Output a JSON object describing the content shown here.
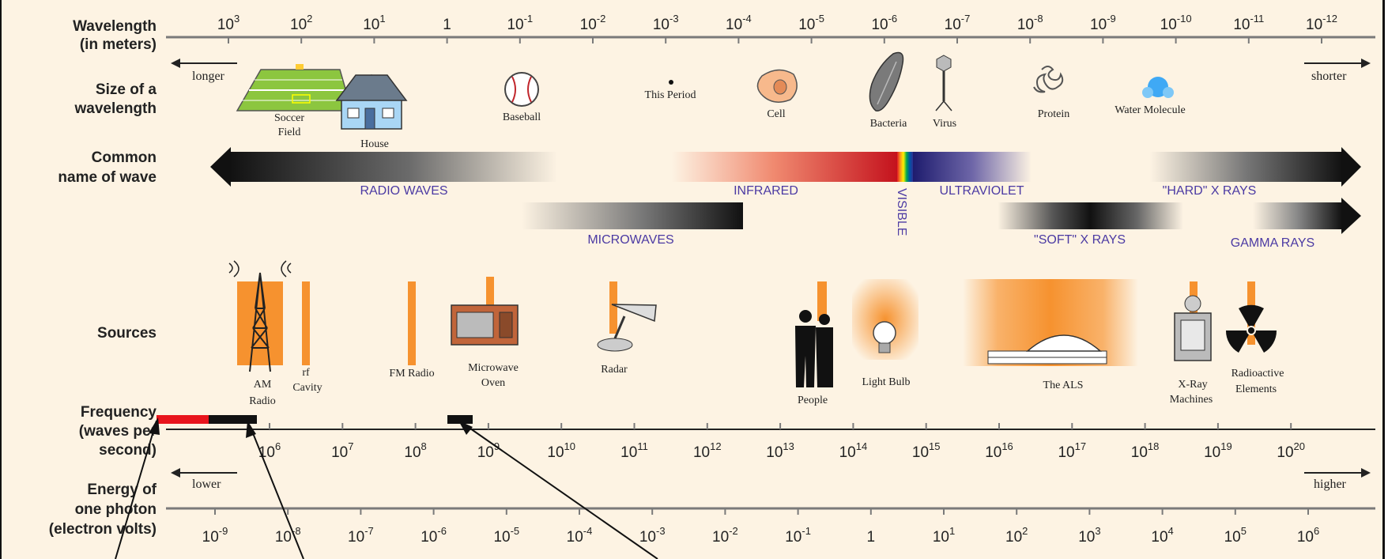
{
  "row_labels": {
    "wavelength": [
      "Wavelength",
      "(in meters)"
    ],
    "size": [
      "Size of a",
      "wavelength"
    ],
    "common": [
      "Common",
      "name of wave"
    ],
    "sources": [
      "Sources"
    ],
    "frequency": [
      "Frequency",
      "(waves per",
      "second)"
    ],
    "energy": [
      "Energy of",
      "one photon",
      "(electron volts)"
    ]
  },
  "wavelength_ticks": [
    {
      "base": "10",
      "exp": "3"
    },
    {
      "base": "10",
      "exp": "2"
    },
    {
      "base": "10",
      "exp": "1"
    },
    {
      "base": "1",
      "exp": ""
    },
    {
      "base": "10",
      "exp": "-1"
    },
    {
      "base": "10",
      "exp": "-2"
    },
    {
      "base": "10",
      "exp": "-3"
    },
    {
      "base": "10",
      "exp": "-4"
    },
    {
      "base": "10",
      "exp": "-5"
    },
    {
      "base": "10",
      "exp": "-6"
    },
    {
      "base": "10",
      "exp": "-7"
    },
    {
      "base": "10",
      "exp": "-8"
    },
    {
      "base": "10",
      "exp": "-9"
    },
    {
      "base": "10",
      "exp": "-10"
    },
    {
      "base": "10",
      "exp": "-11"
    },
    {
      "base": "10",
      "exp": "-12"
    }
  ],
  "frequency_ticks": [
    {
      "base": "10",
      "exp": "6"
    },
    {
      "base": "10",
      "exp": "7"
    },
    {
      "base": "10",
      "exp": "8"
    },
    {
      "base": "10",
      "exp": "9"
    },
    {
      "base": "10",
      "exp": "10"
    },
    {
      "base": "10",
      "exp": "11"
    },
    {
      "base": "10",
      "exp": "12"
    },
    {
      "base": "10",
      "exp": "13"
    },
    {
      "base": "10",
      "exp": "14"
    },
    {
      "base": "10",
      "exp": "15"
    },
    {
      "base": "10",
      "exp": "16"
    },
    {
      "base": "10",
      "exp": "17"
    },
    {
      "base": "10",
      "exp": "18"
    },
    {
      "base": "10",
      "exp": "19"
    },
    {
      "base": "10",
      "exp": "20"
    }
  ],
  "energy_ticks": [
    {
      "base": "10",
      "exp": "-9"
    },
    {
      "base": "10",
      "exp": "-8"
    },
    {
      "base": "10",
      "exp": "-7"
    },
    {
      "base": "10",
      "exp": "-6"
    },
    {
      "base": "10",
      "exp": "-5"
    },
    {
      "base": "10",
      "exp": "-4"
    },
    {
      "base": "10",
      "exp": "-3"
    },
    {
      "base": "10",
      "exp": "-2"
    },
    {
      "base": "10",
      "exp": "-1"
    },
    {
      "base": "1",
      "exp": ""
    },
    {
      "base": "10",
      "exp": "1"
    },
    {
      "base": "10",
      "exp": "2"
    },
    {
      "base": "10",
      "exp": "3"
    },
    {
      "base": "10",
      "exp": "4"
    },
    {
      "base": "10",
      "exp": "5"
    },
    {
      "base": "10",
      "exp": "6"
    }
  ],
  "directions": {
    "longer": "longer",
    "shorter": "shorter",
    "lower": "lower",
    "higher": "higher"
  },
  "size_objects": {
    "soccer": [
      "Soccer",
      "Field"
    ],
    "house": "House",
    "baseball": "Baseball",
    "period": "This Period",
    "cell": "Cell",
    "bacteria": "Bacteria",
    "virus": "Virus",
    "protein": "Protein",
    "water": "Water Molecule"
  },
  "wave_names": {
    "radio": "RADIO WAVES",
    "infrared": "INFRARED",
    "visible": "VISIBLE",
    "ultraviolet": "ULTRAVIOLET",
    "hard_xray": "\"HARD\" X RAYS",
    "microwaves": "MICROWAVES",
    "soft_xray": "\"SOFT\" X RAYS",
    "gamma": "GAMMA RAYS"
  },
  "sources": {
    "am_radio": [
      "AM",
      "Radio"
    ],
    "rf_cavity": [
      "rf",
      "Cavity"
    ],
    "fm_radio": "FM Radio",
    "microwave_oven": [
      "Microwave",
      "Oven"
    ],
    "radar": "Radar",
    "people": "People",
    "light_bulb": "Light Bulb",
    "als": "The ALS",
    "xray_machines": [
      "X-Ray",
      "Machines"
    ],
    "radioactive": [
      "Radioactive",
      "Elements"
    ]
  },
  "colors": {
    "background": "#fdf3e3",
    "axis": "#777777",
    "wave_label": "#4b3aa3",
    "source_orange": "#f6922f",
    "highlight_red": "#e8141c",
    "highlight_black": "#111111"
  }
}
